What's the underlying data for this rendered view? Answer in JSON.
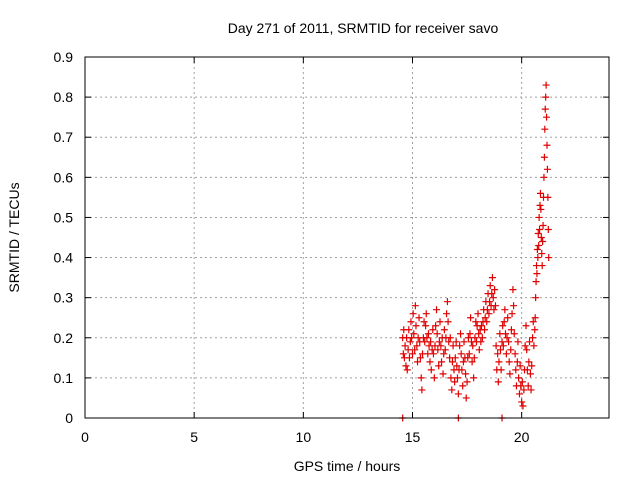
{
  "chart_data": {
    "type": "scatter",
    "title": "Day 271 of 2011, SRMTID for receiver savo",
    "xlabel": "GPS time / hours",
    "ylabel": "SRMTID / TECUs",
    "xlim": [
      0,
      24
    ],
    "ylim": [
      0,
      0.9
    ],
    "x_ticks": [
      0,
      5,
      10,
      15,
      20
    ],
    "y_ticks": [
      0,
      0.1,
      0.2,
      0.3,
      0.4,
      0.5,
      0.6,
      0.7,
      0.8,
      0.9
    ],
    "x_tick_labels": [
      "0",
      "5",
      "10",
      "15",
      "20"
    ],
    "y_tick_labels": [
      "0",
      "0.1",
      "0.2",
      "0.3",
      "0.4",
      "0.5",
      "0.6",
      "0.7",
      "0.8",
      "0.9"
    ],
    "grid": true,
    "legend": "none",
    "marker": "plus",
    "color": "#e00000",
    "series": [
      {
        "points": [
          [
            14.55,
            0.2
          ],
          [
            14.58,
            0.16
          ],
          [
            14.6,
            0.22
          ],
          [
            14.63,
            0.15
          ],
          [
            14.66,
            0.18
          ],
          [
            14.7,
            0.13
          ],
          [
            14.73,
            0.2
          ],
          [
            14.76,
            0.12
          ],
          [
            14.8,
            0.17
          ],
          [
            14.83,
            0.22
          ],
          [
            14.86,
            0.15
          ],
          [
            14.9,
            0.19
          ],
          [
            14.93,
            0.24
          ],
          [
            14.96,
            0.2
          ],
          [
            15.0,
            0.16
          ],
          [
            15.03,
            0.26
          ],
          [
            15.06,
            0.21
          ],
          [
            15.1,
            0.17
          ],
          [
            15.13,
            0.28
          ],
          [
            15.16,
            0.23
          ],
          [
            15.2,
            0.18
          ],
          [
            15.23,
            0.14
          ],
          [
            15.26,
            0.2
          ],
          [
            15.3,
            0.25
          ],
          [
            15.33,
            0.19
          ],
          [
            15.36,
            0.15
          ],
          [
            15.4,
            0.1
          ],
          [
            15.43,
            0.07
          ],
          [
            15.46,
            0.16
          ],
          [
            15.5,
            0.2
          ],
          [
            15.53,
            0.24
          ],
          [
            15.56,
            0.19
          ],
          [
            15.6,
            0.23
          ],
          [
            15.63,
            0.26
          ],
          [
            15.66,
            0.2
          ],
          [
            15.7,
            0.16
          ],
          [
            15.73,
            0.21
          ],
          [
            15.76,
            0.18
          ],
          [
            15.8,
            0.14
          ],
          [
            15.83,
            0.19
          ],
          [
            15.86,
            0.12
          ],
          [
            15.9,
            0.17
          ],
          [
            15.93,
            0.22
          ],
          [
            15.96,
            0.16
          ],
          [
            16.0,
            0.1
          ],
          [
            16.03,
            0.18
          ],
          [
            16.06,
            0.23
          ],
          [
            16.1,
            0.27
          ],
          [
            16.13,
            0.21
          ],
          [
            16.16,
            0.17
          ],
          [
            16.2,
            0.13
          ],
          [
            16.23,
            0.19
          ],
          [
            16.26,
            0.24
          ],
          [
            16.3,
            0.18
          ],
          [
            16.33,
            0.14
          ],
          [
            16.36,
            0.2
          ],
          [
            16.4,
            0.11
          ],
          [
            16.43,
            0.16
          ],
          [
            16.46,
            0.22
          ],
          [
            16.5,
            0.17
          ],
          [
            16.53,
            0.2
          ],
          [
            16.56,
            0.26
          ],
          [
            16.6,
            0.29
          ],
          [
            16.63,
            0.24
          ],
          [
            16.66,
            0.19
          ],
          [
            16.7,
            0.15
          ],
          [
            16.73,
            0.2
          ],
          [
            16.76,
            0.1
          ],
          [
            16.8,
            0.07
          ],
          [
            16.83,
            0.14
          ],
          [
            16.86,
            0.18
          ],
          [
            16.9,
            0.12
          ],
          [
            16.93,
            0.09
          ],
          [
            16.96,
            0.15
          ],
          [
            17.0,
            0.19
          ],
          [
            17.03,
            0.13
          ],
          [
            17.06,
            0.1
          ],
          [
            17.1,
            0.06
          ],
          [
            17.13,
            0.12
          ],
          [
            17.16,
            0.18
          ],
          [
            17.2,
            0.21
          ],
          [
            17.23,
            0.16
          ],
          [
            17.26,
            0.12
          ],
          [
            17.3,
            0.08
          ],
          [
            17.33,
            0.14
          ],
          [
            17.36,
            0.19
          ],
          [
            17.4,
            0.15
          ],
          [
            17.43,
            0.11
          ],
          [
            17.46,
            0.05
          ],
          [
            17.5,
            0.09
          ],
          [
            17.53,
            0.15
          ],
          [
            17.56,
            0.2
          ],
          [
            17.6,
            0.16
          ],
          [
            17.63,
            0.21
          ],
          [
            17.66,
            0.25
          ],
          [
            17.7,
            0.19
          ],
          [
            17.73,
            0.14
          ],
          [
            17.76,
            0.18
          ],
          [
            17.8,
            0.1
          ],
          [
            17.83,
            0.15
          ],
          [
            17.86,
            0.2
          ],
          [
            17.9,
            0.24
          ],
          [
            17.93,
            0.19
          ],
          [
            17.96,
            0.23
          ],
          [
            18.0,
            0.26
          ],
          [
            18.03,
            0.21
          ],
          [
            18.06,
            0.17
          ],
          [
            18.1,
            0.22
          ],
          [
            18.13,
            0.19
          ],
          [
            18.16,
            0.23
          ],
          [
            18.2,
            0.2
          ],
          [
            18.23,
            0.24
          ],
          [
            18.26,
            0.27
          ],
          [
            18.3,
            0.22
          ],
          [
            18.33,
            0.25
          ],
          [
            18.36,
            0.29
          ],
          [
            18.4,
            0.24
          ],
          [
            18.43,
            0.27
          ],
          [
            18.46,
            0.31
          ],
          [
            18.5,
            0.26
          ],
          [
            18.53,
            0.29
          ],
          [
            18.56,
            0.33
          ],
          [
            18.6,
            0.28
          ],
          [
            18.63,
            0.31
          ],
          [
            18.66,
            0.35
          ],
          [
            18.7,
            0.3
          ],
          [
            18.73,
            0.27
          ],
          [
            18.76,
            0.32
          ],
          [
            18.8,
            0.28
          ],
          [
            18.83,
            0.18
          ],
          [
            18.86,
            0.12
          ],
          [
            18.9,
            0.16
          ],
          [
            18.93,
            0.09
          ],
          [
            18.96,
            0.14
          ],
          [
            19.0,
            0.21
          ],
          [
            19.03,
            0.17
          ],
          [
            19.06,
            0.12
          ],
          [
            19.1,
            0.19
          ],
          [
            19.13,
            0.23
          ],
          [
            19.16,
            0.18
          ],
          [
            19.2,
            0.24
          ],
          [
            19.23,
            0.27
          ],
          [
            19.26,
            0.21
          ],
          [
            19.3,
            0.16
          ],
          [
            19.33,
            0.2
          ],
          [
            19.36,
            0.25
          ],
          [
            19.4,
            0.19
          ],
          [
            19.43,
            0.14
          ],
          [
            19.46,
            0.11
          ],
          [
            19.5,
            0.17
          ],
          [
            19.53,
            0.22
          ],
          [
            19.56,
            0.26
          ],
          [
            19.6,
            0.32
          ],
          [
            19.63,
            0.28
          ],
          [
            19.66,
            0.21
          ],
          [
            19.7,
            0.16
          ],
          [
            19.73,
            0.12
          ],
          [
            19.76,
            0.08
          ],
          [
            19.8,
            0.14
          ],
          [
            19.83,
            0.19
          ],
          [
            19.86,
            0.1
          ],
          [
            19.9,
            0.06
          ],
          [
            19.93,
            0.13
          ],
          [
            19.96,
            0.08
          ],
          [
            20.0,
            0.04
          ],
          [
            20.03,
            0.09
          ],
          [
            20.06,
            0.03
          ],
          [
            20.1,
            0.07
          ],
          [
            20.13,
            0.12
          ],
          [
            20.16,
            0.18
          ],
          [
            20.2,
            0.23
          ],
          [
            20.23,
            0.17
          ],
          [
            20.26,
            0.12
          ],
          [
            20.3,
            0.08
          ],
          [
            20.33,
            0.14
          ],
          [
            20.36,
            0.19
          ],
          [
            20.4,
            0.11
          ],
          [
            20.43,
            0.07
          ],
          [
            20.46,
            0.13
          ],
          [
            20.5,
            0.2
          ],
          [
            20.53,
            0.24
          ],
          [
            20.56,
            0.18
          ],
          [
            20.6,
            0.22
          ],
          [
            20.62,
            0.25
          ],
          [
            20.64,
            0.3
          ],
          [
            20.66,
            0.34
          ],
          [
            20.68,
            0.38
          ],
          [
            20.7,
            0.36
          ],
          [
            20.72,
            0.42
          ],
          [
            20.74,
            0.4
          ],
          [
            20.76,
            0.46
          ],
          [
            20.78,
            0.43
          ],
          [
            20.8,
            0.5
          ],
          [
            20.82,
            0.47
          ],
          [
            20.84,
            0.53
          ],
          [
            20.86,
            0.56
          ],
          [
            20.88,
            0.52
          ],
          [
            20.9,
            0.45
          ],
          [
            20.92,
            0.41
          ],
          [
            20.94,
            0.38
          ],
          [
            20.96,
            0.44
          ],
          [
            20.98,
            0.48
          ],
          [
            21.0,
            0.55
          ],
          [
            21.02,
            0.6
          ],
          [
            21.04,
            0.65
          ],
          [
            21.06,
            0.72
          ],
          [
            21.08,
            0.77
          ],
          [
            21.1,
            0.8
          ],
          [
            21.12,
            0.83
          ],
          [
            21.14,
            0.75
          ],
          [
            21.16,
            0.68
          ],
          [
            21.18,
            0.62
          ],
          [
            21.2,
            0.55
          ],
          [
            21.22,
            0.47
          ],
          [
            21.24,
            0.4
          ]
        ]
      },
      {
        "name": "",
        "points": [
          [
            14.55,
            0.0
          ],
          [
            17.1,
            0.0
          ],
          [
            19.1,
            0.0
          ]
        ]
      }
    ]
  }
}
